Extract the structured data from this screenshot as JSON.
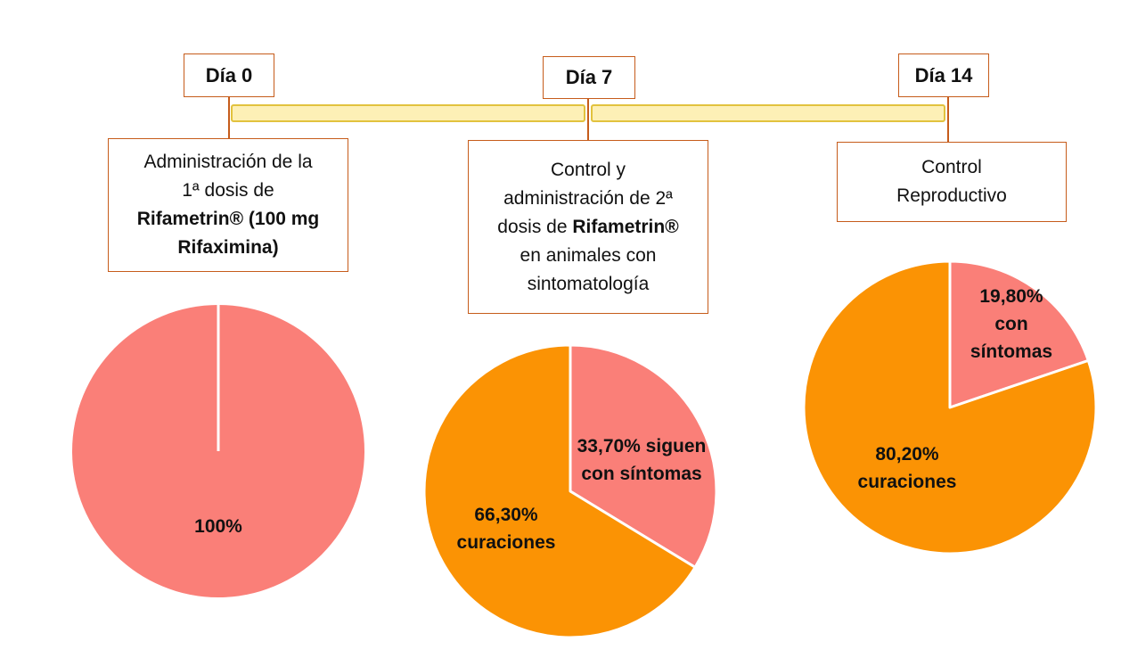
{
  "timeline": {
    "days": [
      {
        "label": "Día 0"
      },
      {
        "label": "Día 7"
      },
      {
        "label": "Día 14"
      }
    ]
  },
  "steps": [
    {
      "line1": "Administración de la",
      "line2": "1ª dosis de",
      "line3": "Rifametrin® (100 mg",
      "line4": "Rifaximina)"
    },
    {
      "line1": "Control y",
      "line2": "administración de 2ª",
      "line3_pre": "dosis de ",
      "line3_bold": "Rifametrin®",
      "line4": "en animales con",
      "line5": "sintomatología"
    },
    {
      "line1": "Control",
      "line2": "Reproductivo"
    }
  ],
  "colors": {
    "symptoms": "#fa7f78",
    "cured": "#fb9304",
    "border": "#c65c1b",
    "bar_fill": "#fdf0b6",
    "bar_border": "#e2c23e"
  },
  "chart_data": [
    {
      "type": "pie",
      "slices": [
        {
          "category": "symptoms",
          "value": 100,
          "label": "100%"
        }
      ]
    },
    {
      "type": "pie",
      "slices": [
        {
          "category": "symptoms",
          "value": 33.7,
          "label_line1": "33,70% siguen",
          "label_line2": "con síntomas"
        },
        {
          "category": "cured",
          "value": 66.3,
          "label_line1": "66,30%",
          "label_line2": "curaciones"
        }
      ]
    },
    {
      "type": "pie",
      "slices": [
        {
          "category": "symptoms",
          "value": 19.8,
          "label_line1": "19,80%",
          "label_line2": "con",
          "label_line3": "síntomas"
        },
        {
          "category": "cured",
          "value": 80.2,
          "label_line1": "80,20%",
          "label_line2": "curaciones"
        }
      ]
    }
  ]
}
